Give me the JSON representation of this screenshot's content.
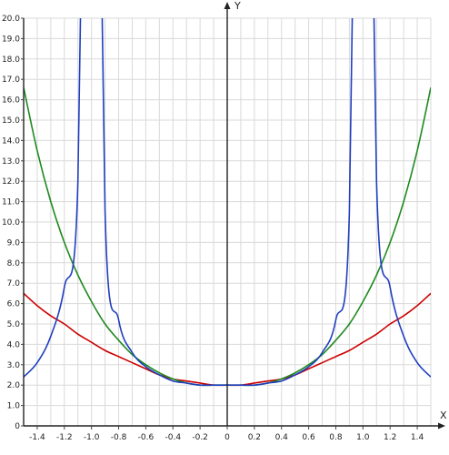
{
  "chart_data": {
    "type": "line",
    "xlabel": "X",
    "ylabel": "Y",
    "xlim": [
      -1.5,
      1.5
    ],
    "ylim": [
      0,
      20
    ],
    "grid": true,
    "x_ticks": [
      "-1.4",
      "-1.2",
      "-1.0",
      "-0.8",
      "-0.6",
      "-0.4",
      "-0.2",
      "0",
      "0.2",
      "0.4",
      "0.6",
      "0.8",
      "1.0",
      "1.2",
      "1.4"
    ],
    "y_ticks": [
      "0",
      "1.0",
      "2.0",
      "3.0",
      "4.0",
      "5.0",
      "6.0",
      "7.0",
      "8.0",
      "9.0",
      "10.0",
      "11.0",
      "12.0",
      "13.0",
      "14.0",
      "15.0",
      "16.0",
      "17.0",
      "18.0",
      "19.0",
      "20.0"
    ],
    "x": [
      -1.5,
      -1.4,
      -1.3,
      -1.2,
      -1.1,
      -1.0,
      -0.9,
      -0.8,
      -0.7,
      -0.6,
      -0.5,
      -0.4,
      -0.3,
      -0.2,
      -0.1,
      0,
      0.1,
      0.2,
      0.3,
      0.4,
      0.5,
      0.6,
      0.7,
      0.8,
      0.9,
      1.0,
      1.1,
      1.2,
      1.3,
      1.4,
      1.5
    ],
    "series": [
      {
        "color": "#cc0000",
        "values": [
          6.5,
          5.9,
          5.4,
          5.0,
          4.5,
          4.1,
          3.7,
          3.4,
          3.1,
          2.8,
          2.5,
          2.3,
          2.2,
          2.1,
          2.0,
          2.0,
          2.0,
          2.1,
          2.2,
          2.3,
          2.5,
          2.8,
          3.1,
          3.4,
          3.7,
          4.1,
          4.5,
          5.0,
          5.4,
          5.9,
          6.5
        ]
      },
      {
        "color": "#1f8a1f",
        "values": [
          16.6,
          13.5,
          11.0,
          9.0,
          7.4,
          6.1,
          5.0,
          4.2,
          3.5,
          3.0,
          2.6,
          2.3,
          2.1,
          2.0,
          2.0,
          2.0,
          2.0,
          2.0,
          2.1,
          2.3,
          2.6,
          3.0,
          3.5,
          4.2,
          5.0,
          6.1,
          7.4,
          9.0,
          11.0,
          13.5,
          16.6
        ]
      },
      {
        "color": "#1f3fbf",
        "values": [
          2.4,
          3.1,
          4.4,
          6.8,
          12.0,
          null,
          10.5,
          5.2,
          3.6,
          2.9,
          2.5,
          2.2,
          2.1,
          2.0,
          2.0,
          2.0,
          2.0,
          2.0,
          2.1,
          2.2,
          2.5,
          2.9,
          3.6,
          5.2,
          10.5,
          null,
          12.0,
          6.8,
          4.4,
          3.1,
          2.4
        ]
      }
    ]
  }
}
